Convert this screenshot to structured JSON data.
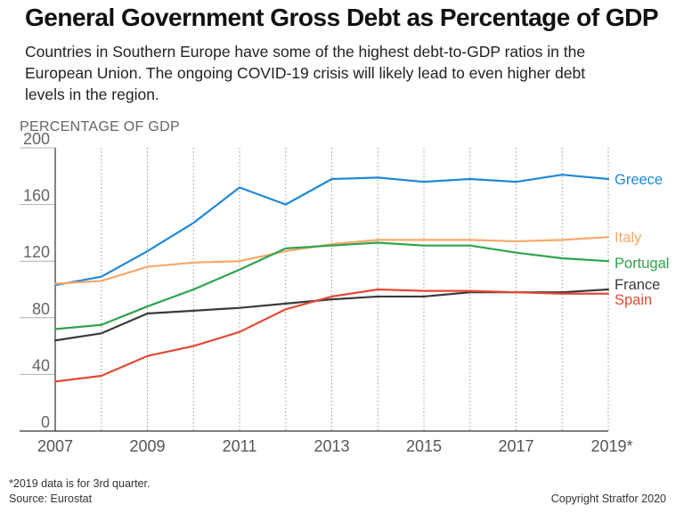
{
  "header": {
    "title": "General Government Gross Debt as Percentage of GDP",
    "subtitle": "Countries in Southern Europe have some of the highest debt-to-GDP ratios in the European Union. The ongoing COVID-19 crisis will likely lead to even higher debt levels in the region."
  },
  "footer": {
    "note": "*2019 data is for 3rd quarter.",
    "source": "Source: Eurostat",
    "copyright": "Copyright Stratfor 2020"
  },
  "chart_data": {
    "type": "line",
    "ylabel": "PERCENTAGE OF GDP",
    "xlabel": "",
    "ylim": [
      0,
      200
    ],
    "yticks": [
      0,
      40,
      80,
      120,
      160,
      200
    ],
    "x": [
      2007,
      2008,
      2009,
      2010,
      2011,
      2012,
      2013,
      2014,
      2015,
      2016,
      2017,
      2018,
      2019
    ],
    "xtick_labels": [
      "2007",
      "2009",
      "2011",
      "2013",
      "2015",
      "2017",
      "2019*"
    ],
    "xtick_values": [
      2007,
      2009,
      2011,
      2013,
      2015,
      2017,
      2019
    ],
    "grid": "vertical-dotted",
    "series": [
      {
        "name": "Greece",
        "color": "#1f88d6",
        "values": [
          103,
          109,
          127,
          147,
          172,
          160,
          178,
          179,
          176,
          178,
          176,
          181,
          178
        ]
      },
      {
        "name": "Italy",
        "color": "#f5a868",
        "values": [
          104,
          106,
          116,
          119,
          120,
          127,
          132,
          135,
          135,
          135,
          134,
          135,
          137
        ]
      },
      {
        "name": "Portugal",
        "color": "#2ea34f",
        "values": [
          72,
          75,
          88,
          100,
          114,
          129,
          131,
          133,
          131,
          131,
          126,
          122,
          120
        ]
      },
      {
        "name": "France",
        "color": "#3a3a3a",
        "values": [
          64,
          69,
          83,
          85,
          87,
          90,
          93,
          95,
          95,
          98,
          98,
          98,
          100
        ]
      },
      {
        "name": "Spain",
        "color": "#e24a33",
        "values": [
          35,
          39,
          53,
          60,
          70,
          86,
          95,
          100,
          99,
          99,
          98,
          97,
          97
        ]
      }
    ]
  }
}
